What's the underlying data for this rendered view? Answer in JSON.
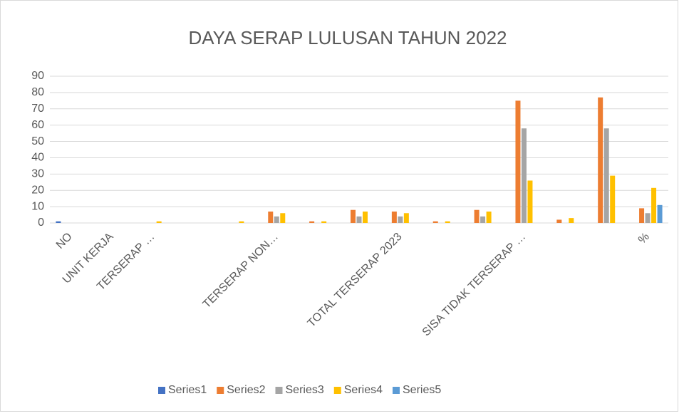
{
  "chart_data": {
    "type": "bar",
    "title": "DAYA SERAP LULUSAN TAHUN 2022",
    "categories": [
      "NO",
      "UNIT KERJA",
      "TERSERAP …",
      null,
      null,
      "TERSERAP NON…",
      null,
      null,
      "TOTAL TERSERAP 2023",
      null,
      null,
      "SISA TIDAK TERSERAP …",
      null,
      null,
      "%"
    ],
    "series": [
      {
        "name": "Series1",
        "color": "#4472c4",
        "values": [
          1,
          null,
          null,
          null,
          null,
          null,
          null,
          null,
          null,
          null,
          null,
          null,
          null,
          null,
          null
        ]
      },
      {
        "name": "Series2",
        "color": "#ed7d31",
        "values": [
          null,
          null,
          null,
          null,
          null,
          7,
          1,
          8,
          7,
          1,
          8,
          75,
          2,
          77,
          9
        ]
      },
      {
        "name": "Series3",
        "color": "#a5a5a5",
        "values": [
          null,
          null,
          null,
          null,
          null,
          4,
          null,
          4,
          4,
          null,
          4,
          58,
          null,
          58,
          6
        ]
      },
      {
        "name": "Series4",
        "color": "#ffc000",
        "values": [
          null,
          null,
          1,
          null,
          1,
          6,
          1,
          7,
          6,
          1,
          7,
          26,
          3,
          29,
          21.5
        ]
      },
      {
        "name": "Series5",
        "color": "#5b9bd5",
        "values": [
          null,
          null,
          null,
          null,
          null,
          null,
          null,
          null,
          null,
          null,
          null,
          null,
          null,
          null,
          11
        ]
      }
    ],
    "ylim": [
      0,
      90
    ],
    "yticks": [
      0,
      10,
      20,
      30,
      40,
      50,
      60,
      70,
      80,
      90
    ],
    "grid": true,
    "legend": "bottom"
  }
}
